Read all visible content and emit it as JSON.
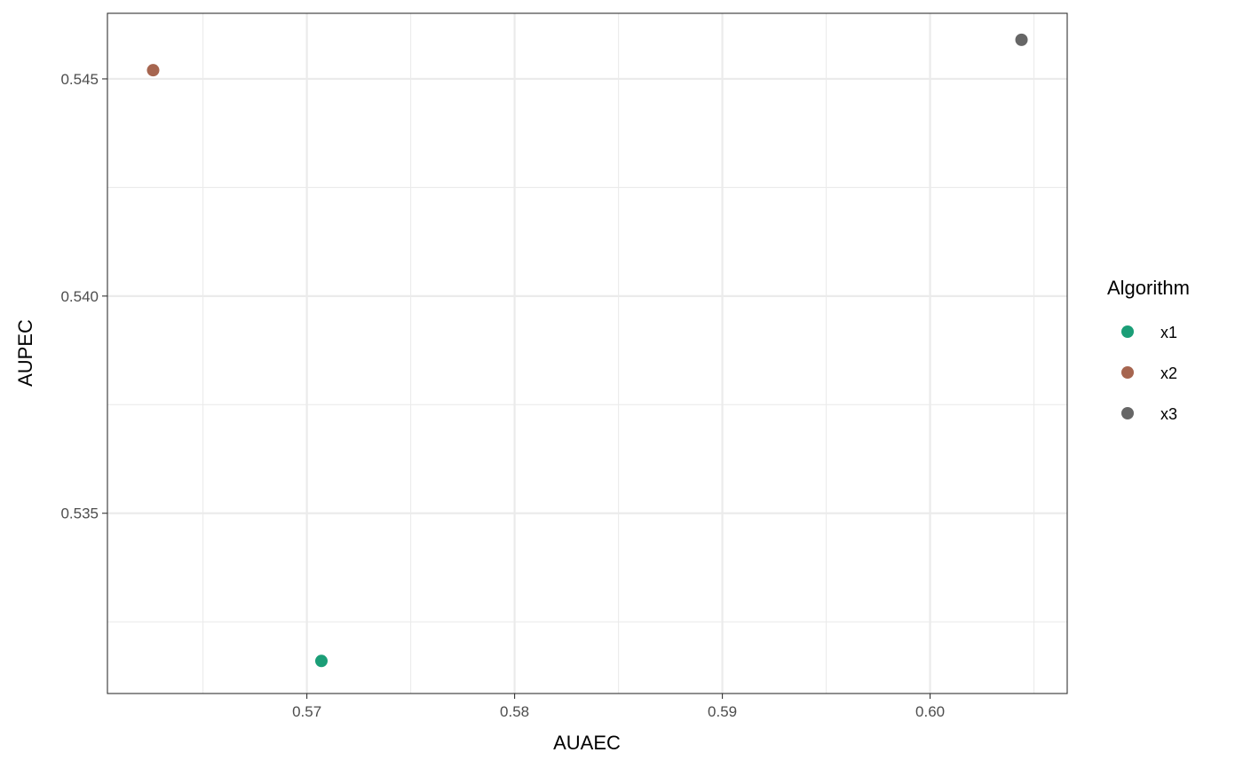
{
  "chart_data": {
    "type": "scatter",
    "title": "",
    "xlabel": "AUAEC",
    "ylabel": "AUPEC",
    "xlim": [
      0.5604,
      0.6066
    ],
    "ylim": [
      0.53085,
      0.54651
    ],
    "x_ticks": [
      {
        "value": 0.57,
        "label": "0.57"
      },
      {
        "value": 0.58,
        "label": "0.58"
      },
      {
        "value": 0.59,
        "label": "0.59"
      },
      {
        "value": 0.6,
        "label": "0.60"
      }
    ],
    "x_minor_ticks": [
      0.565,
      0.575,
      0.585,
      0.595,
      0.605
    ],
    "y_ticks": [
      {
        "value": 0.535,
        "label": "0.535"
      },
      {
        "value": 0.54,
        "label": "0.540"
      },
      {
        "value": 0.545,
        "label": "0.545"
      }
    ],
    "y_minor_ticks": [
      0.5325,
      0.5375,
      0.5425
    ],
    "grid": true,
    "legend": {
      "title": "Algorithm",
      "position": "right"
    },
    "series": [
      {
        "name": "x1",
        "color": "#1b9e77",
        "points": [
          {
            "x": 0.5707,
            "y": 0.5316
          }
        ]
      },
      {
        "name": "x2",
        "color": "#a6654f",
        "points": [
          {
            "x": 0.5626,
            "y": 0.5452
          }
        ]
      },
      {
        "name": "x3",
        "color": "#666666",
        "points": [
          {
            "x": 0.6044,
            "y": 0.5459
          }
        ]
      }
    ]
  }
}
